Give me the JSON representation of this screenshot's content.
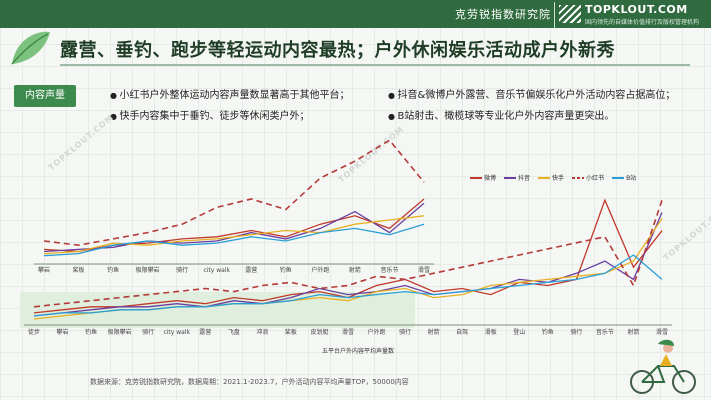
{
  "header": {
    "brand_cn": "克劳锐指数研究院",
    "logo_text": "TOPKLOUT.COM",
    "logo_sub": "国内领先的自媒体价值排行及版权管理机构"
  },
  "title": "露营、垂钓、跑步等轻运动内容最热；户外休闲娱乐活动成户外新秀",
  "tag": "内容声量",
  "bullets": [
    "小红书户外整体运动内容声量数显著高于其他平台；",
    "抖音&微博户外露营、音乐节偏娱乐化户外活动内容占据高位；",
    "快手内容集中于垂钓、徒步等休闲类户外；",
    "B站射击、橄榄球等专业化户外内容声量更突出。"
  ],
  "caption": "五平台户外内容平均声量数",
  "source": "数据来源：克劳锐指数研究院，数据周期：2021.1-2023.7，户外活动内容平均声量TOP，50000内容",
  "watermark": "TOPKLOUT.COM",
  "colors": {
    "topbar": "#2f6b3e",
    "weibo": "#c0392b",
    "douyin": "#6a3fa0",
    "kuaishou": "#e8b021",
    "xiaohongshu": "#b53a3a",
    "bilibili": "#2a9fd6"
  },
  "chart_data": [
    {
      "type": "line",
      "categories": [
        "攀岩",
        "桨板",
        "钓鱼",
        "极限攀岩",
        "骑行",
        "city walk",
        "露营",
        "钓鱼",
        "户外跑",
        "射箭",
        "音乐节",
        "滑雪"
      ],
      "series": [
        {
          "name": "微博",
          "values": [
            6,
            5,
            8,
            9,
            11,
            12,
            15,
            12,
            18,
            22,
            16,
            30
          ],
          "color": "#c0392b",
          "style": "solid"
        },
        {
          "name": "抖音",
          "values": [
            5,
            6,
            7,
            10,
            9,
            10,
            14,
            11,
            16,
            24,
            14,
            28
          ],
          "color": "#6a3fa0",
          "style": "solid"
        },
        {
          "name": "快手",
          "values": [
            4,
            5,
            9,
            8,
            10,
            11,
            13,
            15,
            14,
            18,
            20,
            22
          ],
          "color": "#e8b021",
          "style": "solid"
        },
        {
          "name": "小红书",
          "values": [
            10,
            8,
            11,
            14,
            18,
            26,
            30,
            25,
            40,
            48,
            58,
            38
          ],
          "color": "#b53a3a",
          "style": "dashed"
        },
        {
          "name": "B站",
          "values": [
            3,
            4,
            8,
            10,
            8,
            9,
            12,
            10,
            14,
            16,
            13,
            18
          ],
          "color": "#2a9fd6",
          "style": "solid"
        }
      ]
    },
    {
      "type": "line",
      "categories": [
        "徒步",
        "攀岩",
        "钓鱼",
        "极限攀岩",
        "骑行",
        "city walk",
        "露营",
        "飞盘",
        "冲浪",
        "桨板",
        "皮划艇",
        "滑雪",
        "户外跑",
        "骑行",
        "射箭",
        "自驾",
        "滑板",
        "登山",
        "钓鱼",
        "骑行",
        "音乐节",
        "射箭",
        "滑雪"
      ],
      "series": [
        {
          "name": "微博",
          "values": [
            3,
            4,
            5,
            5,
            6,
            7,
            6,
            8,
            7,
            9,
            10,
            8,
            12,
            14,
            10,
            11,
            9,
            13,
            12,
            14,
            40,
            18,
            30
          ],
          "color": "#c0392b",
          "style": "solid"
        },
        {
          "name": "抖音",
          "values": [
            2,
            3,
            4,
            5,
            5,
            6,
            5,
            7,
            6,
            8,
            11,
            9,
            10,
            12,
            9,
            10,
            11,
            14,
            13,
            16,
            20,
            14,
            36
          ],
          "color": "#6a3fa0",
          "style": "solid"
        },
        {
          "name": "快手",
          "values": [
            1,
            2,
            3,
            4,
            4,
            5,
            5,
            6,
            6,
            7,
            8,
            7,
            10,
            11,
            8,
            9,
            12,
            13,
            14,
            15,
            16,
            20,
            34
          ],
          "color": "#e8b021",
          "style": "solid"
        },
        {
          "name": "小红书",
          "values": [
            5,
            6,
            7,
            8,
            9,
            10,
            11,
            10,
            12,
            13,
            11,
            12,
            15,
            14,
            16,
            18,
            20,
            22,
            24,
            26,
            28,
            12,
            40
          ],
          "color": "#b53a3a",
          "style": "dashed"
        },
        {
          "name": "B站",
          "values": [
            2,
            3,
            3,
            4,
            4,
            5,
            5,
            6,
            6,
            7,
            9,
            8,
            9,
            10,
            9,
            10,
            11,
            12,
            13,
            14,
            16,
            22,
            14
          ],
          "color": "#2a9fd6",
          "style": "solid"
        }
      ]
    }
  ]
}
